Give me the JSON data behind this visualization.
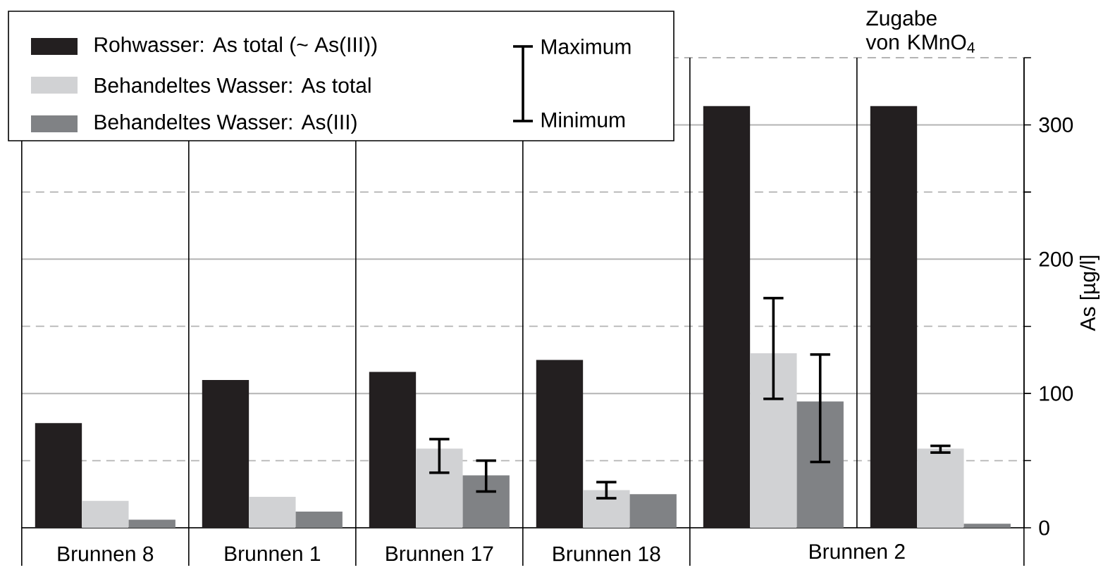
{
  "chart_data": {
    "type": "bar",
    "categories": [
      "Brunnen 8",
      "Brunnen 1",
      "Brunnen 17",
      "Brunnen 18",
      null,
      null
    ],
    "series": [
      {
        "name": "Rohwasser: As total (~ As(III))",
        "color": "#231f20",
        "values": [
          78,
          110,
          116,
          125,
          314,
          314
        ]
      },
      {
        "name": "Behandeltes Wasser: As total",
        "color": "#d1d2d4",
        "values": [
          20,
          23,
          59,
          28,
          130,
          59
        ],
        "errors": [
          null,
          null,
          [
            41,
            66
          ],
          [
            22,
            34
          ],
          [
            96,
            171
          ],
          [
            56,
            61
          ]
        ]
      },
      {
        "name": "Behandeltes Wasser: As(III)",
        "color": "#808285",
        "values": [
          6,
          12,
          39,
          25,
          94,
          3
        ],
        "errors": [
          null,
          null,
          [
            27,
            50
          ],
          null,
          [
            49,
            129
          ],
          null
        ]
      }
    ],
    "ylabel": "As [µg/l]",
    "ylim": [
      0,
      350
    ],
    "yticks": [
      0,
      {
        "value": 50,
        "label": null
      },
      100,
      {
        "value": 150,
        "label": null
      },
      200,
      {
        "value": 250,
        "label": null
      },
      300,
      {
        "value": 350,
        "label": null
      }
    ],
    "grid": true,
    "legend": "top left",
    "annotations": [
      "Zugabe von KMnO$_{4}$",
      "Brunnen 2",
      "Maximum",
      "Minimum"
    ]
  }
}
